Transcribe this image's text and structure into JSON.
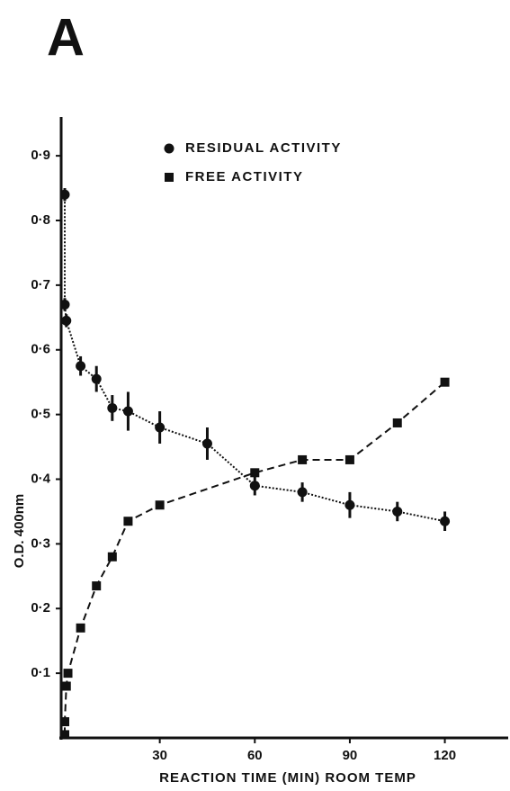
{
  "chart_data": {
    "type": "scatter",
    "title": "A",
    "x_label": "REACTION  TIME (MIN)  ROOM  TEMP",
    "y_label": "O.D. 400nm",
    "xlim": [
      0,
      140
    ],
    "ylim": [
      0,
      0.96
    ],
    "xticks": [
      30,
      60,
      90,
      120
    ],
    "yticks": [
      {
        "value": 0.1,
        "label": "0·1"
      },
      {
        "value": 0.2,
        "label": "0·2"
      },
      {
        "value": 0.3,
        "label": "0·3"
      },
      {
        "value": 0.4,
        "label": "0·4"
      },
      {
        "value": 0.5,
        "label": "0·5"
      },
      {
        "value": 0.6,
        "label": "0·6"
      },
      {
        "value": 0.7,
        "label": "0·7"
      },
      {
        "value": 0.8,
        "label": "0·8"
      },
      {
        "value": 0.9,
        "label": "0·9"
      }
    ],
    "series": [
      {
        "name": "RESIDUAL ACTIVITY",
        "marker": "circle",
        "color": "#111111",
        "line": "dotted",
        "x": [
          0,
          0,
          0.5,
          5,
          10,
          15,
          20,
          30,
          45,
          60,
          75,
          90,
          105,
          120
        ],
        "values": [
          0.84,
          0.67,
          0.645,
          0.575,
          0.555,
          0.51,
          0.505,
          0.48,
          0.455,
          0.39,
          0.38,
          0.36,
          0.35,
          0.335
        ],
        "errors": [
          0.01,
          0.01,
          0.01,
          0.015,
          0.02,
          0.02,
          0.03,
          0.025,
          0.025,
          0.015,
          0.015,
          0.02,
          0.015,
          0.015
        ]
      },
      {
        "name": "FREE ACTIVITY",
        "marker": "square",
        "color": "#111111",
        "line": "dashed",
        "x": [
          0,
          0,
          0.5,
          1,
          5,
          10,
          15,
          20,
          30,
          60,
          75,
          90,
          105,
          120
        ],
        "values": [
          0.005,
          0.025,
          0.08,
          0.1,
          0.17,
          0.235,
          0.28,
          0.335,
          0.36,
          0.41,
          0.43,
          0.43,
          0.487,
          0.55
        ]
      }
    ]
  }
}
